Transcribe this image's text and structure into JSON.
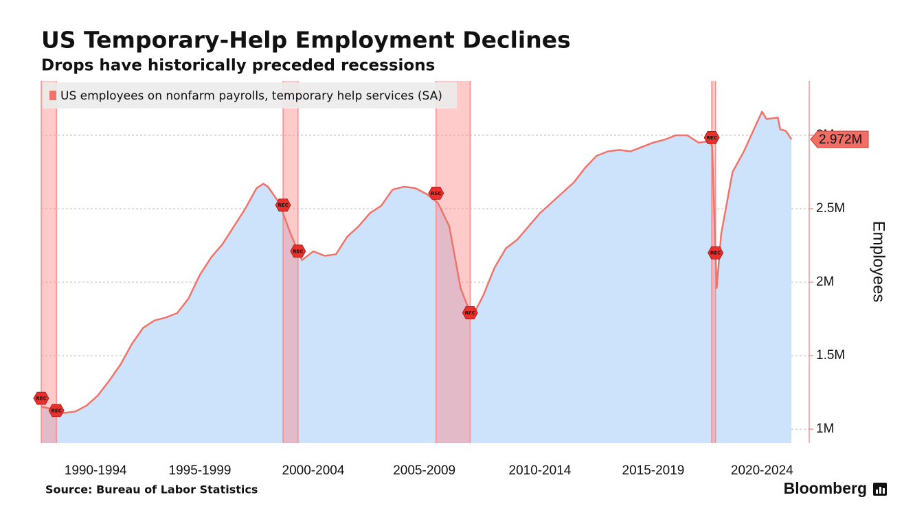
{
  "chart_data": {
    "type": "area",
    "title": "US Temporary-Help Employment Declines",
    "subtitle": "Drops have historically preceded recessions",
    "source": "Source: Bureau of Labor Statistics",
    "brand": "Bloomberg",
    "y_label": "Employees",
    "x": [
      1990.5,
      1991.0,
      1991.5,
      1992.0,
      1992.5,
      1993.0,
      1993.5,
      1994.0,
      1994.5,
      1995.0,
      1995.5,
      1996.0,
      1996.5,
      1997.0,
      1997.5,
      1998.0,
      1998.5,
      1999.0,
      1999.5,
      2000.0,
      2000.3,
      2000.5,
      2001.0,
      2001.5,
      2002.0,
      2002.5,
      2003.0,
      2003.5,
      2004.0,
      2004.5,
      2005.0,
      2005.5,
      2006.0,
      2006.5,
      2007.0,
      2007.5,
      2008.0,
      2008.5,
      2009.0,
      2009.5,
      2010.0,
      2010.5,
      2011.0,
      2011.5,
      2012.0,
      2012.5,
      2013.0,
      2013.5,
      2014.0,
      2014.5,
      2015.0,
      2015.5,
      2016.0,
      2016.5,
      2017.0,
      2017.5,
      2018.0,
      2018.5,
      2019.0,
      2019.5,
      2020.0,
      2020.1,
      2020.3,
      2020.5,
      2021.0,
      2021.5,
      2022.0,
      2022.3,
      2022.5,
      2023.0,
      2023.1,
      2023.35,
      2023.6
    ],
    "series": [
      {
        "name": "US employees on nonfarm payrolls, temporary help services (SA)",
        "color": "#f0736a",
        "fill": "#cde3fb",
        "values": [
          1.154,
          1.136,
          1.11,
          1.12,
          1.16,
          1.23,
          1.33,
          1.44,
          1.58,
          1.69,
          1.74,
          1.76,
          1.79,
          1.89,
          2.05,
          2.17,
          2.26,
          2.38,
          2.5,
          2.64,
          2.67,
          2.65,
          2.54,
          2.33,
          2.15,
          2.21,
          2.18,
          2.19,
          2.31,
          2.38,
          2.47,
          2.52,
          2.63,
          2.65,
          2.64,
          2.6,
          2.54,
          2.38,
          1.96,
          1.76,
          1.91,
          2.1,
          2.23,
          2.29,
          2.38,
          2.47,
          2.54,
          2.61,
          2.68,
          2.78,
          2.86,
          2.89,
          2.9,
          2.89,
          2.92,
          2.95,
          2.97,
          3.0,
          3.0,
          2.95,
          2.96,
          2.92,
          1.96,
          2.33,
          2.75,
          2.89,
          3.06,
          3.16,
          3.11,
          3.12,
          3.04,
          3.03,
          2.972
        ],
        "value_labels": [
          null,
          null,
          null,
          null,
          null,
          null,
          null,
          null,
          null,
          null,
          null,
          null,
          null,
          null,
          null,
          null,
          null,
          null,
          null,
          null,
          null,
          null,
          null,
          null,
          null,
          null,
          null,
          null,
          null,
          null,
          null,
          null,
          null,
          null,
          null,
          null,
          null,
          null,
          null,
          null,
          null,
          null,
          null,
          null,
          null,
          null,
          null,
          null,
          null,
          null,
          null,
          null,
          null,
          null,
          null,
          null,
          null,
          null,
          null,
          null,
          null,
          null,
          null,
          null,
          null,
          null,
          null,
          null,
          null,
          null,
          null,
          null,
          "2.972M"
        ]
      }
    ],
    "recessions": [
      [
        1990.5,
        1991.17
      ],
      [
        2001.17,
        2001.83
      ],
      [
        2007.92,
        2009.42
      ],
      [
        2020.08,
        2020.25
      ]
    ],
    "recession_label": "REC",
    "recession_color": "#ff8a8a",
    "xlim": [
      1990.5,
      2024.29
    ],
    "xticks": [
      {
        "value": 1992.9,
        "label": "1990-1994"
      },
      {
        "value": 1997.5,
        "label": "1995-1999"
      },
      {
        "value": 2002.5,
        "label": "2000-2004"
      },
      {
        "value": 2007.4,
        "label": "2005-2009"
      },
      {
        "value": 2012.5,
        "label": "2010-2014"
      },
      {
        "value": 2017.5,
        "label": "2015-2019"
      },
      {
        "value": 2022.3,
        "label": "2020-2024"
      }
    ],
    "ylim": [
      0.907,
      3.369
    ],
    "yticks": [
      {
        "value": 1,
        "label": "1M"
      },
      {
        "value": 1.5,
        "label": "1.5M"
      },
      {
        "value": 2,
        "label": "2M"
      },
      {
        "value": 2.5,
        "label": "2.5M"
      },
      {
        "value": 3,
        "label": "3M"
      }
    ],
    "grid": true
  }
}
